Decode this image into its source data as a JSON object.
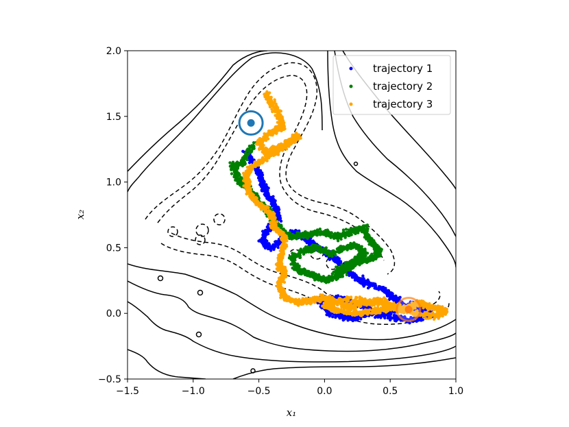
{
  "chart_data": {
    "type": "scatter",
    "title": "",
    "xlabel": "x₁",
    "ylabel": "x₂",
    "xlim": [
      -1.5,
      1.0
    ],
    "ylim": [
      -0.5,
      2.0
    ],
    "xticks": [
      -1.5,
      -1.0,
      -0.5,
      0.0,
      0.5,
      1.0
    ],
    "yticks": [
      -0.5,
      0.0,
      0.5,
      1.0,
      1.5,
      2.0
    ],
    "xtick_labels": [
      "−1.5",
      "−1.0",
      "−0.5",
      "0.0",
      "0.5",
      "1.0"
    ],
    "ytick_labels": [
      "−0.5",
      "0.0",
      "0.5",
      "1.0",
      "1.5",
      "2.0"
    ],
    "legend_position": "top-right",
    "series": [
      {
        "name": "trajectory 1",
        "color": "#0000ff",
        "path": [
          [
            -0.6,
            1.23
          ],
          [
            -0.52,
            1.12
          ],
          [
            -0.48,
            1.0
          ],
          [
            -0.44,
            0.92
          ],
          [
            -0.38,
            0.82
          ],
          [
            -0.35,
            0.72
          ],
          [
            -0.42,
            0.65
          ],
          [
            -0.48,
            0.55
          ],
          [
            -0.4,
            0.5
          ],
          [
            -0.3,
            0.58
          ],
          [
            -0.22,
            0.62
          ],
          [
            -0.12,
            0.55
          ],
          [
            -0.02,
            0.48
          ],
          [
            0.1,
            0.4
          ],
          [
            0.2,
            0.3
          ],
          [
            0.3,
            0.24
          ],
          [
            0.45,
            0.18
          ],
          [
            0.55,
            0.1
          ],
          [
            0.62,
            0.04
          ],
          [
            0.7,
            0.02
          ],
          [
            0.78,
            0.06
          ],
          [
            0.8,
            -0.02
          ],
          [
            0.62,
            -0.05
          ],
          [
            0.45,
            -0.02
          ],
          [
            0.3,
            0.05
          ],
          [
            0.15,
            0.1
          ],
          [
            0.05,
            0.12
          ],
          [
            -0.05,
            0.1
          ],
          [
            0.05,
            0.0
          ],
          [
            0.2,
            -0.04
          ],
          [
            0.35,
            0.0
          ],
          [
            0.55,
            0.02
          ],
          [
            0.7,
            0.08
          ]
        ]
      },
      {
        "name": "trajectory 2",
        "color": "#008000",
        "path": [
          [
            -0.55,
            1.28
          ],
          [
            -0.62,
            1.15
          ],
          [
            -0.7,
            1.12
          ],
          [
            -0.65,
            1.02
          ],
          [
            -0.58,
            0.95
          ],
          [
            -0.5,
            0.85
          ],
          [
            -0.42,
            0.78
          ],
          [
            -0.38,
            0.7
          ],
          [
            -0.32,
            0.62
          ],
          [
            -0.25,
            0.58
          ],
          [
            -0.12,
            0.6
          ],
          [
            0.0,
            0.62
          ],
          [
            0.1,
            0.58
          ],
          [
            0.2,
            0.62
          ],
          [
            0.3,
            0.66
          ],
          [
            0.35,
            0.55
          ],
          [
            0.42,
            0.48
          ],
          [
            0.38,
            0.42
          ],
          [
            0.28,
            0.4
          ],
          [
            0.18,
            0.35
          ],
          [
            0.1,
            0.28
          ],
          [
            0.0,
            0.25
          ],
          [
            -0.1,
            0.3
          ],
          [
            -0.2,
            0.32
          ],
          [
            -0.25,
            0.42
          ],
          [
            -0.15,
            0.48
          ],
          [
            -0.05,
            0.5
          ],
          [
            0.05,
            0.45
          ],
          [
            0.15,
            0.5
          ],
          [
            0.25,
            0.52
          ],
          [
            0.3,
            0.45
          ],
          [
            0.2,
            0.38
          ],
          [
            0.08,
            0.32
          ]
        ]
      },
      {
        "name": "trajectory 3",
        "color": "#ffa500",
        "path": [
          [
            -0.45,
            1.68
          ],
          [
            -0.4,
            1.6
          ],
          [
            -0.35,
            1.52
          ],
          [
            -0.32,
            1.42
          ],
          [
            -0.4,
            1.38
          ],
          [
            -0.5,
            1.3
          ],
          [
            -0.45,
            1.22
          ],
          [
            -0.38,
            1.25
          ],
          [
            -0.25,
            1.3
          ],
          [
            -0.2,
            1.36
          ],
          [
            -0.3,
            1.28
          ],
          [
            -0.42,
            1.2
          ],
          [
            -0.55,
            1.12
          ],
          [
            -0.6,
            1.05
          ],
          [
            -0.58,
            0.95
          ],
          [
            -0.55,
            0.88
          ],
          [
            -0.48,
            0.82
          ],
          [
            -0.4,
            0.75
          ],
          [
            -0.38,
            0.65
          ],
          [
            -0.3,
            0.58
          ],
          [
            -0.32,
            0.48
          ],
          [
            -0.35,
            0.38
          ],
          [
            -0.3,
            0.3
          ],
          [
            -0.35,
            0.22
          ],
          [
            -0.3,
            0.12
          ],
          [
            -0.22,
            0.08
          ],
          [
            -0.1,
            0.1
          ],
          [
            0.0,
            0.12
          ],
          [
            0.1,
            0.08
          ],
          [
            0.2,
            0.05
          ],
          [
            0.3,
            0.08
          ],
          [
            0.42,
            0.1
          ],
          [
            0.5,
            0.06
          ],
          [
            0.58,
            0.03
          ],
          [
            0.65,
            0.05
          ],
          [
            0.72,
            0.08
          ],
          [
            0.8,
            0.05
          ],
          [
            0.88,
            0.03
          ],
          [
            0.92,
            0.02
          ],
          [
            0.85,
            -0.02
          ],
          [
            0.7,
            0.0
          ],
          [
            0.55,
            0.05
          ],
          [
            0.4,
            0.02
          ],
          [
            0.25,
            0.0
          ],
          [
            0.1,
            0.02
          ],
          [
            0.0,
            0.06
          ],
          [
            0.1,
            0.1
          ],
          [
            0.3,
            0.1
          ],
          [
            0.6,
            0.02
          ]
        ]
      }
    ],
    "markers": [
      {
        "name": "start",
        "x": -0.56,
        "y": 1.45,
        "color": "#1f77b4"
      },
      {
        "name": "end",
        "x": 0.64,
        "y": 0.03,
        "color": "#ff7f0e"
      }
    ]
  }
}
